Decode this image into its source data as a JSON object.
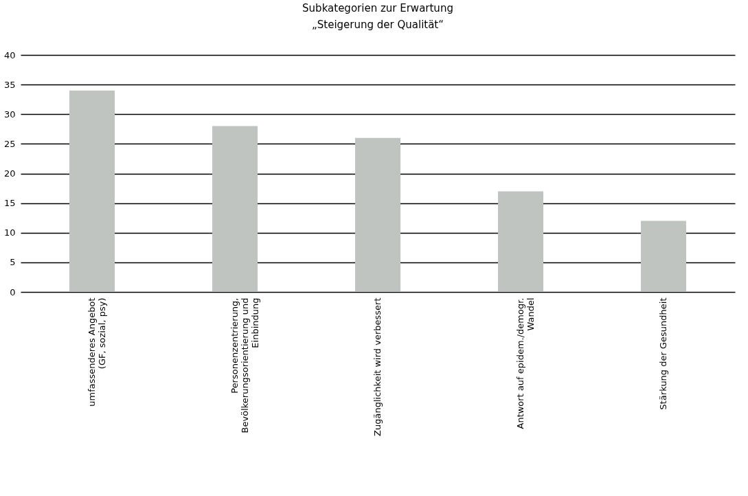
{
  "chart_data": {
    "type": "bar",
    "title": "Subkategorien zur Erwartung\n„Steigerung der Qualität“",
    "categories": [
      "umfassenderes Angebot\n(GF, sozial, psy)",
      "Personenzentrierung,\nBevölkerungsorientierung und\nEinbindung",
      "Zugänglichkeit wird verbessert",
      "Antwort auf epidem./demogr.\nWandel",
      "Stärkung der Gesundheit"
    ],
    "values": [
      34,
      28,
      26,
      17,
      12
    ],
    "color": "#c0c4c1",
    "ylim": [
      0,
      40
    ],
    "yticks": [
      0,
      5,
      10,
      15,
      20,
      25,
      30,
      35,
      40
    ],
    "grid": "y"
  }
}
